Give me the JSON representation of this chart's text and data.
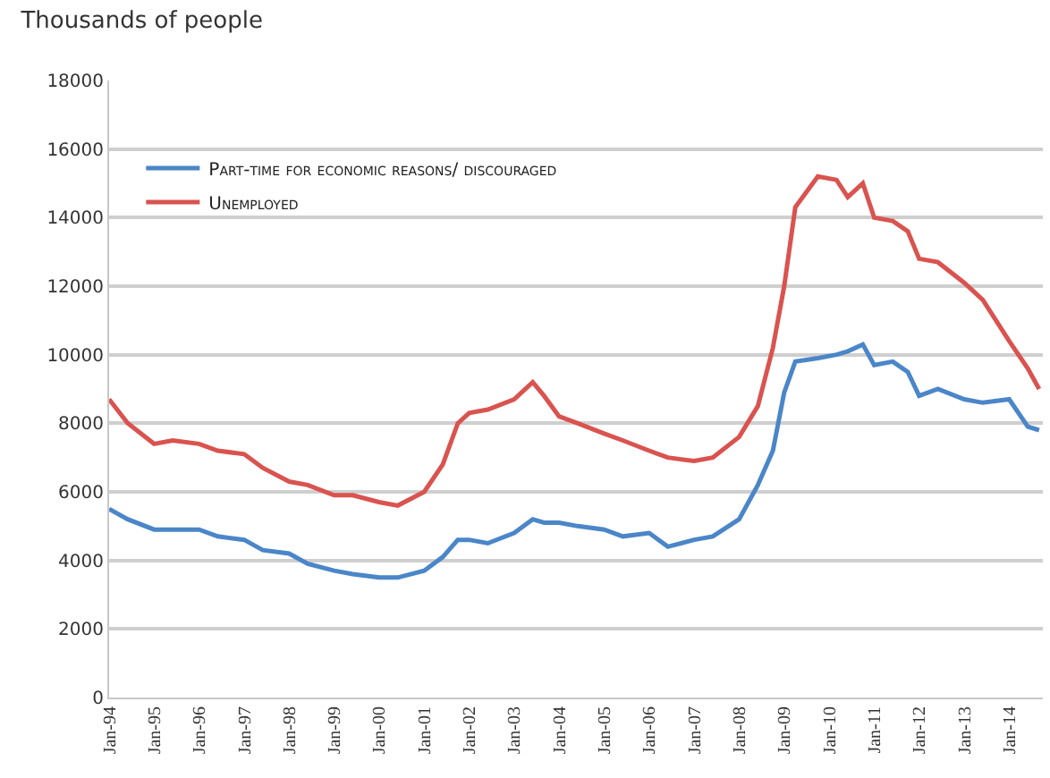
{
  "chart_data": {
    "type": "line",
    "title": "Thousands of people",
    "x": [
      "1994-01",
      "1994-06",
      "1995-01",
      "1995-06",
      "1996-01",
      "1996-06",
      "1997-01",
      "1997-06",
      "1998-01",
      "1998-06",
      "1999-01",
      "1999-06",
      "2000-01",
      "2000-06",
      "2001-01",
      "2001-06",
      "2001-10",
      "2002-01",
      "2002-06",
      "2003-01",
      "2003-06",
      "2003-09",
      "2004-01",
      "2004-06",
      "2005-01",
      "2005-06",
      "2006-01",
      "2006-06",
      "2007-01",
      "2007-06",
      "2008-01",
      "2008-06",
      "2008-10",
      "2009-01",
      "2009-04",
      "2009-10",
      "2010-03",
      "2010-06",
      "2010-10",
      "2011-01",
      "2011-06",
      "2011-10",
      "2012-01",
      "2012-06",
      "2013-01",
      "2013-06",
      "2014-01",
      "2014-06",
      "2014-09"
    ],
    "series": [
      {
        "name": "Part-time for economic reasons/ discouraged",
        "color": "#4a86c8",
        "values": [
          5500,
          5200,
          4900,
          4900,
          4900,
          4700,
          4600,
          4300,
          4200,
          3900,
          3700,
          3600,
          3500,
          3500,
          3700,
          4100,
          4600,
          4600,
          4500,
          4800,
          5200,
          5100,
          5100,
          5000,
          4900,
          4700,
          4800,
          4400,
          4600,
          4700,
          5200,
          6200,
          7200,
          8900,
          9800,
          9900,
          10000,
          10100,
          10300,
          9700,
          9800,
          9500,
          8800,
          9000,
          8700,
          8600,
          8700,
          7900,
          7800
        ]
      },
      {
        "name": "Unemployed",
        "color": "#d9534f",
        "values": [
          8700,
          8000,
          7400,
          7500,
          7400,
          7200,
          7100,
          6700,
          6300,
          6200,
          5900,
          5900,
          5700,
          5600,
          6000,
          6800,
          8000,
          8300,
          8400,
          8700,
          9200,
          8800,
          8200,
          8000,
          7700,
          7500,
          7200,
          7000,
          6900,
          7000,
          7600,
          8500,
          10200,
          12000,
          14300,
          15200,
          15100,
          14600,
          15000,
          14000,
          13900,
          13600,
          12800,
          12700,
          12100,
          11600,
          10400,
          9600,
          9000
        ]
      }
    ],
    "xlim": [
      "1994-01",
      "2014-10"
    ],
    "xticks": [
      {
        "value": "1994-01",
        "label": "Jan-94"
      },
      {
        "value": "1995-01",
        "label": "Jan-95"
      },
      {
        "value": "1996-01",
        "label": "Jan-96"
      },
      {
        "value": "1997-01",
        "label": "Jan-97"
      },
      {
        "value": "1998-01",
        "label": "Jan-98"
      },
      {
        "value": "1999-01",
        "label": "Jan-99"
      },
      {
        "value": "2000-01",
        "label": "Jan-00"
      },
      {
        "value": "2001-01",
        "label": "Jan-01"
      },
      {
        "value": "2002-01",
        "label": "Jan-02"
      },
      {
        "value": "2003-01",
        "label": "Jan-03"
      },
      {
        "value": "2004-01",
        "label": "Jan-04"
      },
      {
        "value": "2005-01",
        "label": "Jan-05"
      },
      {
        "value": "2006-01",
        "label": "Jan-06"
      },
      {
        "value": "2007-01",
        "label": "Jan-07"
      },
      {
        "value": "2008-01",
        "label": "Jan-08"
      },
      {
        "value": "2009-01",
        "label": "Jan-09"
      },
      {
        "value": "2010-01",
        "label": "Jan-10"
      },
      {
        "value": "2011-01",
        "label": "Jan-11"
      },
      {
        "value": "2012-01",
        "label": "Jan-12"
      },
      {
        "value": "2013-01",
        "label": "Jan-13"
      },
      {
        "value": "2014-01",
        "label": "Jan-14"
      }
    ],
    "ylim": [
      0,
      18000
    ],
    "yticks": [
      0,
      2000,
      4000,
      6000,
      8000,
      10000,
      12000,
      14000,
      16000,
      18000
    ],
    "grid": "y",
    "legend": "top left",
    "line_style": "solid",
    "marker": "none"
  }
}
